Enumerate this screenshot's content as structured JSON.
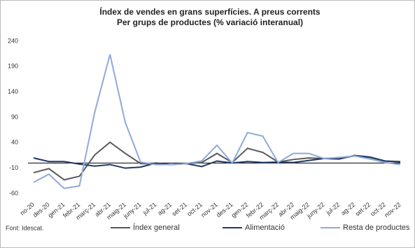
{
  "chart_data": {
    "type": "line",
    "title": "Índex de vendes en grans superfícies. A preus corrents",
    "subtitle": "Per grups de productes (% variació interanual)",
    "source": "Font: Idescat.",
    "categories": [
      "no-20",
      "des-20",
      "gen-21",
      "febr-21",
      "març-21",
      "abr-21",
      "maig-21",
      "juny-21",
      "jul-21",
      "ag-21",
      "set-21",
      "oct-21",
      "nov-21",
      "des-21",
      "gen-22",
      "febr-22",
      "març-22",
      "abr-22",
      "maig-22",
      "juny-22",
      "jul-22",
      "ag-22",
      "set-22",
      "oct-22",
      "nov-22"
    ],
    "series": [
      {
        "name": "Índex general",
        "color": "#595959",
        "values": [
          -19,
          -11,
          -33,
          -26,
          16,
          41,
          19,
          -1,
          -2,
          -3,
          -1,
          1,
          19,
          1,
          29,
          21,
          2,
          7,
          10,
          9,
          9,
          14,
          11,
          4,
          3
        ]
      },
      {
        "name": "Alimentació",
        "color": "#1f3864",
        "values": [
          10,
          3,
          3,
          -2,
          -6,
          -3,
          -10,
          -8,
          0,
          -3,
          -1,
          -7,
          4,
          0,
          3,
          1,
          2,
          1,
          5,
          9,
          8,
          15,
          12,
          4,
          2
        ]
      },
      {
        "name": "Resta de productes",
        "color": "#8eaadb",
        "values": [
          -38,
          -22,
          -50,
          -45,
          100,
          214,
          80,
          2,
          -3,
          -3,
          -1,
          4,
          35,
          0,
          60,
          53,
          1,
          19,
          19,
          9,
          11,
          14,
          8,
          1,
          -3
        ]
      }
    ],
    "ylim": [
      -60,
      240
    ],
    "yticks": [
      -60,
      -10,
      40,
      90,
      140,
      190,
      240
    ],
    "grid": false,
    "legend": "bottom"
  }
}
